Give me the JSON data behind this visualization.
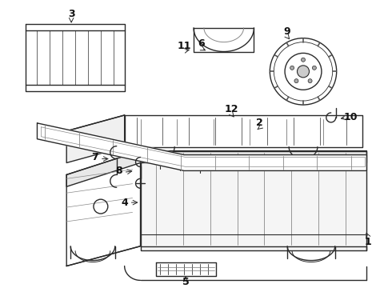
{
  "background_color": "#ffffff",
  "line_color": "#2a2a2a",
  "label_color": "#111111",
  "label_fs": 9,
  "lw": 1.0
}
